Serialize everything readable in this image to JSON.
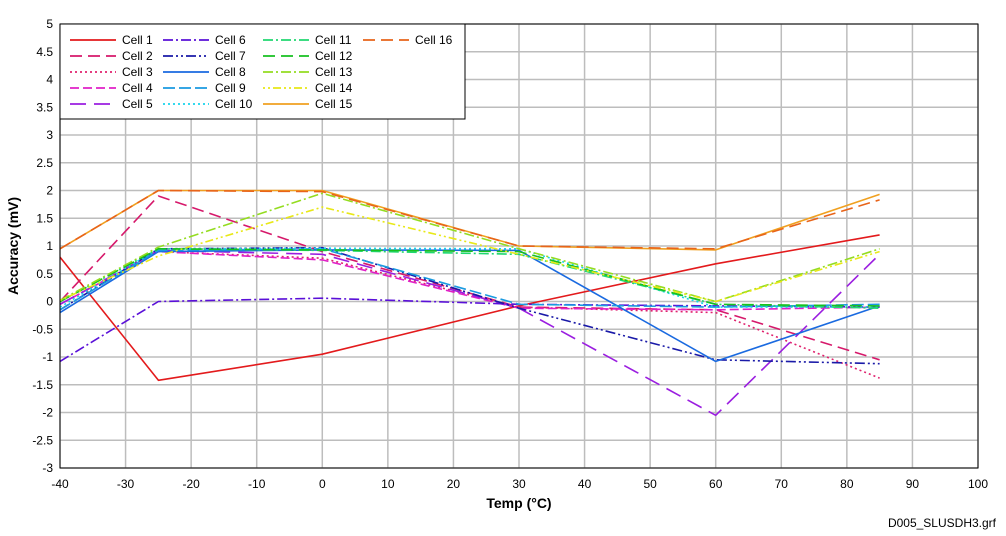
{
  "chart_data": {
    "type": "line",
    "title": "",
    "xlabel": "Temp (°C)",
    "ylabel": "Accuracy (mV)",
    "xlim": [
      -40,
      100
    ],
    "ylim": [
      -3,
      5
    ],
    "xticks": [
      -40,
      -30,
      -20,
      -10,
      0,
      10,
      20,
      30,
      40,
      50,
      60,
      70,
      80,
      90,
      100
    ],
    "yticks": [
      -3,
      -2.5,
      -2,
      -1.5,
      -1,
      -0.5,
      0,
      0.5,
      1,
      1.5,
      2,
      2.5,
      3,
      3.5,
      4,
      4.5,
      5
    ],
    "grid": true,
    "legend_position": "top-left",
    "x": [
      -40,
      -25,
      0,
      30,
      60,
      85
    ],
    "series": [
      {
        "name": "Cell 1",
        "values": [
          0.8,
          -1.42,
          -0.95,
          -0.08,
          0.68,
          1.2
        ],
        "color": "#e31a1c",
        "dash": ""
      },
      {
        "name": "Cell 2",
        "values": [
          0.0,
          1.9,
          0.9,
          -0.1,
          -0.15,
          -1.05
        ],
        "color": "#d6196b",
        "dash": "12,6"
      },
      {
        "name": "Cell 3",
        "values": [
          -0.05,
          0.9,
          0.78,
          -0.1,
          -0.2,
          -1.38
        ],
        "color": "#e0226e",
        "dash": "2,3"
      },
      {
        "name": "Cell 4",
        "values": [
          -0.05,
          0.9,
          0.75,
          -0.12,
          -0.15,
          -0.1
        ],
        "color": "#e020c8",
        "dash": "9,4"
      },
      {
        "name": "Cell 5",
        "values": [
          -0.05,
          0.92,
          0.85,
          -0.12,
          -2.05,
          0.85
        ],
        "color": "#9b1ee0",
        "dash": "16,8"
      },
      {
        "name": "Cell 6",
        "values": [
          -1.08,
          0.0,
          0.06,
          -0.05,
          -0.08,
          -0.1
        ],
        "color": "#5a10d8",
        "dash": "10,3,2,3"
      },
      {
        "name": "Cell 7",
        "values": [
          -0.15,
          0.95,
          0.97,
          -0.12,
          -1.05,
          -1.12
        ],
        "color": "#1a1aa8",
        "dash": "10,3,2,3,2,3"
      },
      {
        "name": "Cell 8",
        "values": [
          -0.2,
          0.9,
          0.93,
          0.92,
          -1.08,
          -0.08
        ],
        "color": "#1a6ae0",
        "dash": ""
      },
      {
        "name": "Cell 9",
        "values": [
          -0.15,
          0.92,
          0.95,
          -0.05,
          -0.1,
          -0.05
        ],
        "color": "#1a9ae0",
        "dash": "12,4"
      },
      {
        "name": "Cell 10",
        "values": [
          -0.1,
          0.95,
          0.96,
          0.95,
          -0.1,
          -0.1
        ],
        "color": "#18d4ec",
        "dash": "2,3"
      },
      {
        "name": "Cell 11",
        "values": [
          0.0,
          0.95,
          0.92,
          0.85,
          -0.05,
          -0.12
        ],
        "color": "#20d870",
        "dash": "10,3,2,3"
      },
      {
        "name": "Cell 12",
        "values": [
          0.0,
          0.95,
          0.93,
          0.9,
          -0.05,
          -0.08
        ],
        "color": "#18c020",
        "dash": "12,6"
      },
      {
        "name": "Cell 13",
        "values": [
          0.02,
          0.98,
          1.95,
          0.95,
          0.0,
          0.95
        ],
        "color": "#94dc20",
        "dash": "10,3,2,3"
      },
      {
        "name": "Cell 14",
        "values": [
          0.02,
          0.82,
          1.7,
          0.85,
          0.0,
          0.9
        ],
        "color": "#e8e818",
        "dash": "2,3,2,3,8,3"
      },
      {
        "name": "Cell 15",
        "values": [
          0.95,
          2.0,
          2.0,
          1.0,
          0.93,
          1.93
        ],
        "color": "#f0a020",
        "dash": ""
      },
      {
        "name": "Cell 16",
        "values": [
          0.95,
          2.0,
          1.98,
          1.0,
          0.95,
          1.83
        ],
        "color": "#e8641a",
        "dash": "12,6"
      }
    ]
  },
  "footnote": "D005_SLUSDH3.grf"
}
